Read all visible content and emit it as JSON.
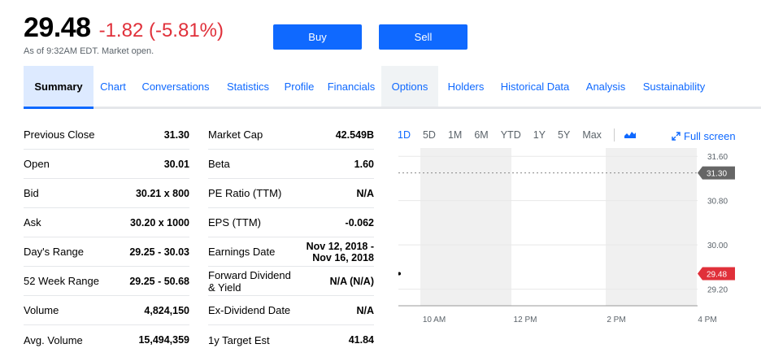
{
  "quote": {
    "price": "29.48",
    "change": "-1.82 (-5.81%)",
    "as_of": "As of 9:32AM EDT. Market open."
  },
  "actions": {
    "buy": "Buy",
    "sell": "Sell"
  },
  "tabs": [
    {
      "label": "Summary",
      "state": "active"
    },
    {
      "label": "Chart"
    },
    {
      "label": "Conversations"
    },
    {
      "label": "Statistics"
    },
    {
      "label": "Profile"
    },
    {
      "label": "Financials"
    },
    {
      "label": "Options",
      "state": "highlighted"
    },
    {
      "label": "Holders"
    },
    {
      "label": "Historical Data"
    },
    {
      "label": "Analysis"
    },
    {
      "label": "Sustainability"
    }
  ],
  "summary_left": [
    {
      "label": "Previous Close",
      "value": "31.30"
    },
    {
      "label": "Open",
      "value": "30.01"
    },
    {
      "label": "Bid",
      "value": "30.21 x 800"
    },
    {
      "label": "Ask",
      "value": "30.20 x 1000"
    },
    {
      "label": "Day's Range",
      "value": "29.25 - 30.03"
    },
    {
      "label": "52 Week Range",
      "value": "29.25 - 50.68"
    },
    {
      "label": "Volume",
      "value": "4,824,150"
    },
    {
      "label": "Avg. Volume",
      "value": "15,494,359"
    }
  ],
  "summary_right": [
    {
      "label": "Market Cap",
      "value": "42.549B"
    },
    {
      "label": "Beta",
      "value": "1.60"
    },
    {
      "label": "PE Ratio (TTM)",
      "value": "N/A"
    },
    {
      "label": "EPS (TTM)",
      "value": "-0.062"
    },
    {
      "label": "Earnings Date",
      "value": "Nov 12, 2018 - Nov 16, 2018"
    },
    {
      "label": "Forward Dividend & Yield",
      "value": "N/A (N/A)"
    },
    {
      "label": "Ex-Dividend Date",
      "value": "N/A"
    },
    {
      "label": "1y Target Est",
      "value": "41.84"
    }
  ],
  "chart": {
    "ranges": [
      "1D",
      "5D",
      "1M",
      "6M",
      "YTD",
      "1Y",
      "5Y",
      "Max"
    ],
    "active_range": "1D",
    "chart_type_icon": "mountain-chart-icon",
    "full_screen_label": "Full screen",
    "full_screen_icon": "expand-icon",
    "accent_color": "#0f69ff",
    "down_color": "#e0303a"
  },
  "chart_data": {
    "type": "line",
    "x_ticks": [
      "10 AM",
      "12 PM",
      "2 PM",
      "4 PM"
    ],
    "y_ticks": [
      "31.60",
      "30.80",
      "30.00",
      "29.20"
    ],
    "ylim": [
      28.9,
      31.75
    ],
    "previous_close": {
      "label": "31.30",
      "value": 31.3
    },
    "current_price": {
      "label": "29.48",
      "value": 29.48
    },
    "series": [
      {
        "x": [
          "9:32"
        ],
        "values": [
          29.48
        ]
      }
    ],
    "grid": true
  }
}
